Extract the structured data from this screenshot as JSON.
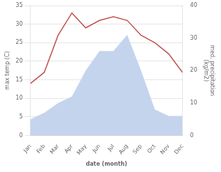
{
  "chart_data": {
    "type": "line",
    "xlabel": "date (month)",
    "ylabel": "max temp (C)",
    "y2label": "med. precipitation\n (kg/m2)",
    "categories": [
      "Jan",
      "Feb",
      "Mar",
      "Apr",
      "May",
      "Jun",
      "Jul",
      "Aug",
      "Sep",
      "Oct",
      "Nov",
      "Dec"
    ],
    "series": [
      {
        "type": "area",
        "axis": "y2",
        "color": "#c5d4ed",
        "values": [
          5,
          7,
          10,
          12,
          20,
          26,
          26,
          31,
          20,
          8,
          6,
          6
        ]
      },
      {
        "type": "line",
        "color": "#c0504d",
        "values": [
          14,
          17,
          27,
          33,
          29,
          31,
          32,
          31,
          27,
          25,
          22,
          17
        ]
      }
    ],
    "ylim": [
      0,
      35
    ],
    "yticks": [
      0,
      5,
      10,
      15,
      20,
      25,
      30,
      35
    ],
    "y2lim": [
      0,
      40
    ],
    "y2ticks": [
      0,
      10,
      20,
      30,
      40
    ],
    "grid": true
  }
}
